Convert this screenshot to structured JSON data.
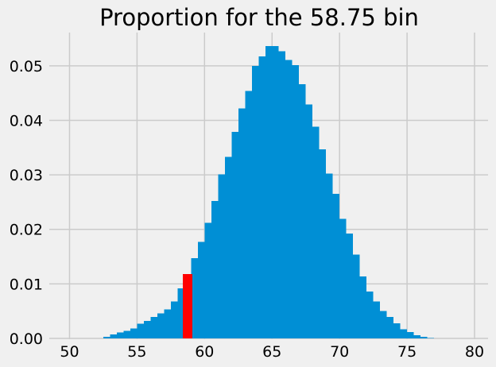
{
  "figure": {
    "background": "#F0F0F0"
  },
  "chart_data": {
    "type": "bar",
    "title": "Proportion for the 58.75 bin",
    "xlabel": "",
    "ylabel": "",
    "legend": "none",
    "grid": true,
    "xlim": [
      48.5,
      81
    ],
    "ylim": [
      0,
      0.0561
    ],
    "x_ticks": [
      "50",
      "55",
      "60",
      "65",
      "70",
      "75",
      "80"
    ],
    "x_tick_values": [
      50,
      55,
      60,
      65,
      70,
      75,
      80
    ],
    "y_ticks": [
      "0.00",
      "0.01",
      "0.02",
      "0.03",
      "0.04",
      "0.05"
    ],
    "y_tick_values": [
      0,
      0.01,
      0.02,
      0.03,
      0.04,
      0.05
    ],
    "bin_width": 0.5,
    "bin_centers": [
      52.75,
      53.25,
      53.75,
      54.25,
      54.75,
      55.25,
      55.75,
      56.25,
      56.75,
      57.25,
      57.75,
      58.25,
      58.75,
      59.25,
      59.75,
      60.25,
      60.75,
      61.25,
      61.75,
      62.25,
      62.75,
      63.25,
      63.75,
      64.25,
      64.75,
      65.25,
      65.75,
      66.25,
      66.75,
      67.25,
      67.75,
      68.25,
      68.75,
      69.25,
      69.75,
      70.25,
      70.75,
      71.25,
      71.75,
      72.25,
      72.75,
      73.25,
      73.75,
      74.25,
      74.75,
      75.25,
      75.75,
      76.25,
      76.75
    ],
    "proportions": [
      0.0003,
      0.0007,
      0.0011,
      0.0014,
      0.0018,
      0.0027,
      0.0032,
      0.0039,
      0.0046,
      0.0053,
      0.0068,
      0.0092,
      0.0118,
      0.0147,
      0.0177,
      0.0212,
      0.0252,
      0.0301,
      0.0333,
      0.0379,
      0.0422,
      0.0454,
      0.05,
      0.0517,
      0.0536,
      0.0536,
      0.0527,
      0.0511,
      0.0501,
      0.0466,
      0.0429,
      0.0388,
      0.0347,
      0.0302,
      0.0265,
      0.0219,
      0.0192,
      0.0154,
      0.0114,
      0.0086,
      0.0068,
      0.005,
      0.0039,
      0.0028,
      0.0017,
      0.0012,
      0.0006,
      0.0003,
      0.0001
    ],
    "highlighted_bin": {
      "center": 58.75,
      "proportion": 0.0118,
      "bar_width": 0.7
    },
    "colors": {
      "bar": "#008FD5",
      "highlight": "#FF0000",
      "background": "#F0F0F0",
      "grid": "#CBCBCB",
      "text": "#000000"
    }
  }
}
